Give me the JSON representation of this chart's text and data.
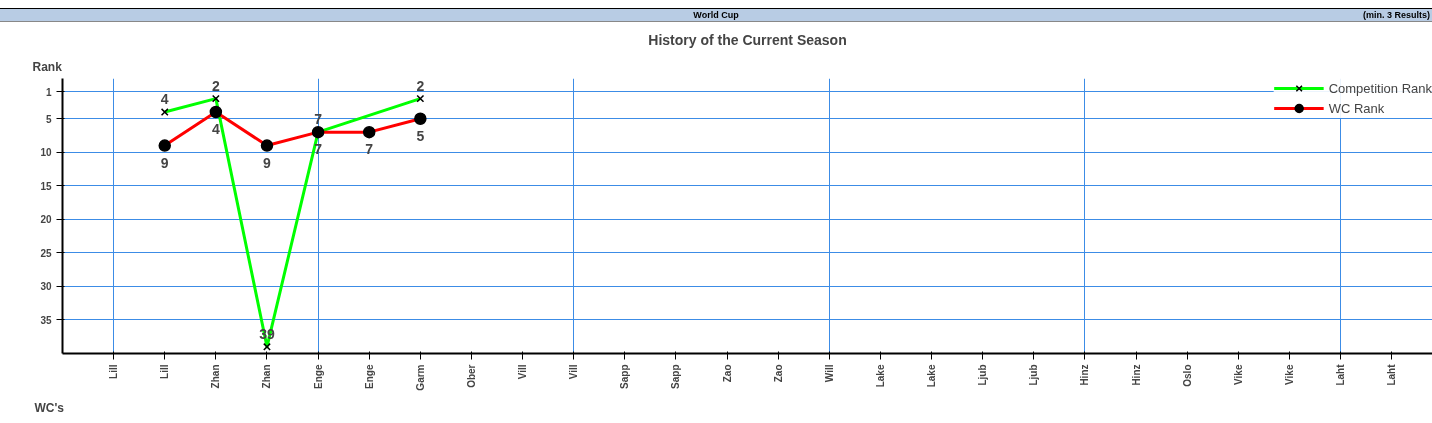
{
  "chart_data": {
    "type": "line",
    "title": "History of the Current Season",
    "subtitle": "World Cup",
    "annotations": [
      "(min. 3 Results)"
    ],
    "ylabel": "Rank",
    "xlabel": "WC's",
    "categories": [
      "Lill",
      "Lill",
      "Zhan",
      "Zhan",
      "Enge",
      "Enge",
      "Garm",
      "Ober",
      "Vill",
      "Vill",
      "Sapp",
      "Sapp",
      "Zao",
      "Zao",
      "Will",
      "Lake",
      "Lake",
      "Ljub",
      "Ljub",
      "Hinz",
      "Hinz",
      "Oslo",
      "Vike",
      "Vike",
      "Laht",
      "Laht"
    ],
    "series": [
      {
        "name": "Competition Rank",
        "color": "#00ff00",
        "marker": "cross",
        "values": [
          null,
          4,
          2,
          39,
          7,
          null,
          2,
          null,
          null,
          null,
          null,
          null,
          null,
          null,
          null,
          null,
          null,
          null,
          null,
          null,
          null,
          null,
          null,
          null,
          null,
          null
        ]
      },
      {
        "name": "WC Rank",
        "color": "#ff0000",
        "marker": "circle",
        "values": [
          null,
          9,
          4,
          9,
          7,
          7,
          5,
          null,
          null,
          null,
          null,
          null,
          null,
          null,
          null,
          null,
          null,
          null,
          null,
          null,
          null,
          null,
          null,
          null,
          null,
          null
        ]
      }
    ],
    "ylim": [
      40,
      -1
    ],
    "yticks": [
      1,
      5,
      10,
      15,
      20,
      25,
      30,
      35
    ],
    "grid": true,
    "legend": "top right",
    "data_labels": true,
    "line_style": "solid"
  }
}
